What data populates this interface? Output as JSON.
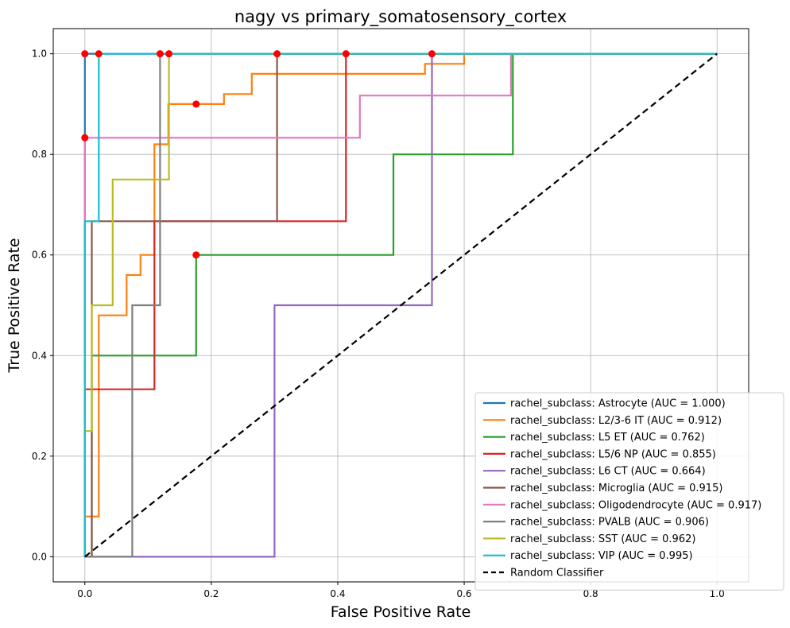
{
  "chart_data": {
    "type": "line",
    "title": "nagy vs primary_somatosensory_cortex",
    "xlabel": "False Positive Rate",
    "ylabel": "True Positive Rate",
    "xlim": [
      -0.05,
      1.05
    ],
    "ylim": [
      -0.05,
      1.05
    ],
    "xticks": [
      "0.0",
      "0.2",
      "0.4",
      "0.6",
      "0.8",
      "1.0"
    ],
    "yticks": [
      "0.0",
      "0.2",
      "0.4",
      "0.6",
      "0.8",
      "1.0"
    ],
    "grid": true,
    "legend_position": "lower right",
    "series": [
      {
        "name": "rachel_subclass: Astrocyte (AUC = 1.000)",
        "color": "#1f77b4",
        "x": [
          0,
          0,
          1
        ],
        "y": [
          0,
          1,
          1
        ]
      },
      {
        "name": "rachel_subclass: L2/3-6 IT (AUC = 0.912)",
        "color": "#ff7f0e",
        "x": [
          0,
          0,
          0.022,
          0.022,
          0.066,
          0.066,
          0.088,
          0.088,
          0.11,
          0.11,
          0.132,
          0.132,
          0.176,
          0.176,
          0.22,
          0.22,
          0.264,
          0.264,
          0.538,
          0.538,
          0.6,
          0.6,
          1
        ],
        "y": [
          0,
          0.08,
          0.08,
          0.48,
          0.48,
          0.56,
          0.56,
          0.6,
          0.6,
          0.82,
          0.82,
          0.9,
          0.9,
          0.9,
          0.9,
          0.92,
          0.92,
          0.96,
          0.96,
          0.98,
          0.98,
          1,
          1
        ]
      },
      {
        "name": "rachel_subclass: L5 ET (AUC = 0.762)",
        "color": "#2ca02c",
        "x": [
          0,
          0.011,
          0.011,
          0.176,
          0.176,
          0.488,
          0.488,
          0.677,
          0.677,
          1
        ],
        "y": [
          0,
          0,
          0.4,
          0.4,
          0.6,
          0.6,
          0.8,
          0.8,
          1,
          1
        ]
      },
      {
        "name": "rachel_subclass: L5/6 NP (AUC = 0.855)",
        "color": "#d62728",
        "x": [
          0,
          0,
          0.11,
          0.11,
          0.413,
          0.413,
          1
        ],
        "y": [
          0,
          0.333,
          0.333,
          0.667,
          0.667,
          1,
          1
        ]
      },
      {
        "name": "rachel_subclass: L6 CT (AUC = 0.664)",
        "color": "#9467bd",
        "x": [
          0,
          0.3,
          0.3,
          0.549,
          0.549,
          1
        ],
        "y": [
          0,
          0,
          0.5,
          0.5,
          1,
          1
        ]
      },
      {
        "name": "rachel_subclass: Microglia (AUC = 0.915)",
        "color": "#8c564b",
        "x": [
          0,
          0.011,
          0.011,
          0.304,
          0.304,
          1
        ],
        "y": [
          0,
          0,
          0.667,
          0.667,
          1,
          1
        ]
      },
      {
        "name": "rachel_subclass: Oligodendrocyte (AUC = 0.917)",
        "color": "#e377c2",
        "x": [
          0,
          0,
          0.435,
          0.435,
          0.674,
          0.674,
          1
        ],
        "y": [
          0,
          0.833,
          0.833,
          0.917,
          0.917,
          1,
          1
        ]
      },
      {
        "name": "rachel_subclass: PVALB (AUC = 0.906)",
        "color": "#7f7f7f",
        "x": [
          0,
          0.075,
          0.075,
          0.119,
          0.119,
          1
        ],
        "y": [
          0,
          0,
          0.5,
          0.5,
          1,
          1
        ]
      },
      {
        "name": "rachel_subclass: SST (AUC = 0.962)",
        "color": "#bcbd22",
        "x": [
          0,
          0.011,
          0.011,
          0.044,
          0.044,
          0.133,
          0.133,
          1
        ],
        "y": [
          0.25,
          0.25,
          0.5,
          0.5,
          0.75,
          0.75,
          1,
          1
        ]
      },
      {
        "name": "rachel_subclass: VIP (AUC = 0.995)",
        "color": "#17becf",
        "x": [
          0,
          0,
          0.022,
          0.022,
          1
        ],
        "y": [
          0,
          0.667,
          0.667,
          1,
          1
        ]
      },
      {
        "name": "Random Classifier",
        "color": "#000000",
        "dashed": true,
        "x": [
          0,
          1
        ],
        "y": [
          0,
          1
        ]
      }
    ],
    "markers": {
      "color": "#ff0000",
      "points": [
        [
          0,
          1
        ],
        [
          0.022,
          1
        ],
        [
          0.119,
          1
        ],
        [
          0.133,
          1
        ],
        [
          0.304,
          1
        ],
        [
          0.413,
          1
        ],
        [
          0.549,
          1
        ],
        [
          0.176,
          0.9
        ],
        [
          0,
          0.833
        ],
        [
          0.176,
          0.6
        ]
      ]
    }
  }
}
